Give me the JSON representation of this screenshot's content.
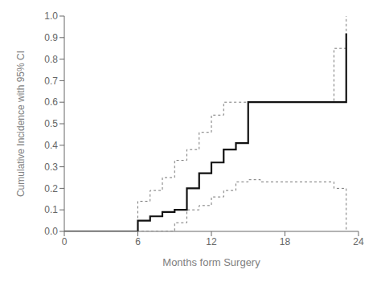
{
  "chart_data": {
    "type": "step",
    "xlabel": "Months form Surgery",
    "ylabel": "Cumulative Incidence with 95% CI",
    "xlim": [
      0,
      24
    ],
    "ylim": [
      0.0,
      1.0
    ],
    "xticks": [
      0,
      6,
      12,
      18,
      24
    ],
    "yticks": [
      {
        "value": 0.0,
        "label": "0.0"
      },
      0.1,
      0.2,
      0.3,
      0.4,
      0.5,
      0.6,
      0.7,
      0.8,
      0.9,
      {
        "value": 1.0,
        "label": "1.0"
      }
    ],
    "grid": false,
    "series": [
      {
        "x": [
          0,
          6,
          7,
          8,
          9,
          10,
          11,
          12,
          13,
          14,
          15,
          22,
          23
        ],
        "values": [
          0,
          0.14,
          0.19,
          0.25,
          0.33,
          0.38,
          0.46,
          0.54,
          0.6,
          0.6,
          0.6,
          0.85,
          1.0
        ],
        "color": "#777777",
        "line_style": "dashed"
      },
      {
        "x": [
          0,
          6,
          9,
          10,
          11,
          12,
          13,
          14,
          15,
          16,
          22,
          23
        ],
        "values": [
          0,
          0.0,
          0.04,
          0.1,
          0.12,
          0.16,
          0.19,
          0.23,
          0.24,
          0.23,
          0.2,
          0.0
        ],
        "color": "#777777",
        "line_style": "dashed"
      },
      {
        "x": [
          0,
          6,
          7,
          8,
          9,
          10,
          11,
          12,
          13,
          14,
          15,
          22,
          23
        ],
        "values": [
          0,
          0.05,
          0.07,
          0.09,
          0.1,
          0.2,
          0.27,
          0.32,
          0.38,
          0.41,
          0.6,
          0.6,
          0.92
        ],
        "color": "#111111",
        "line_style": "solid"
      }
    ]
  }
}
